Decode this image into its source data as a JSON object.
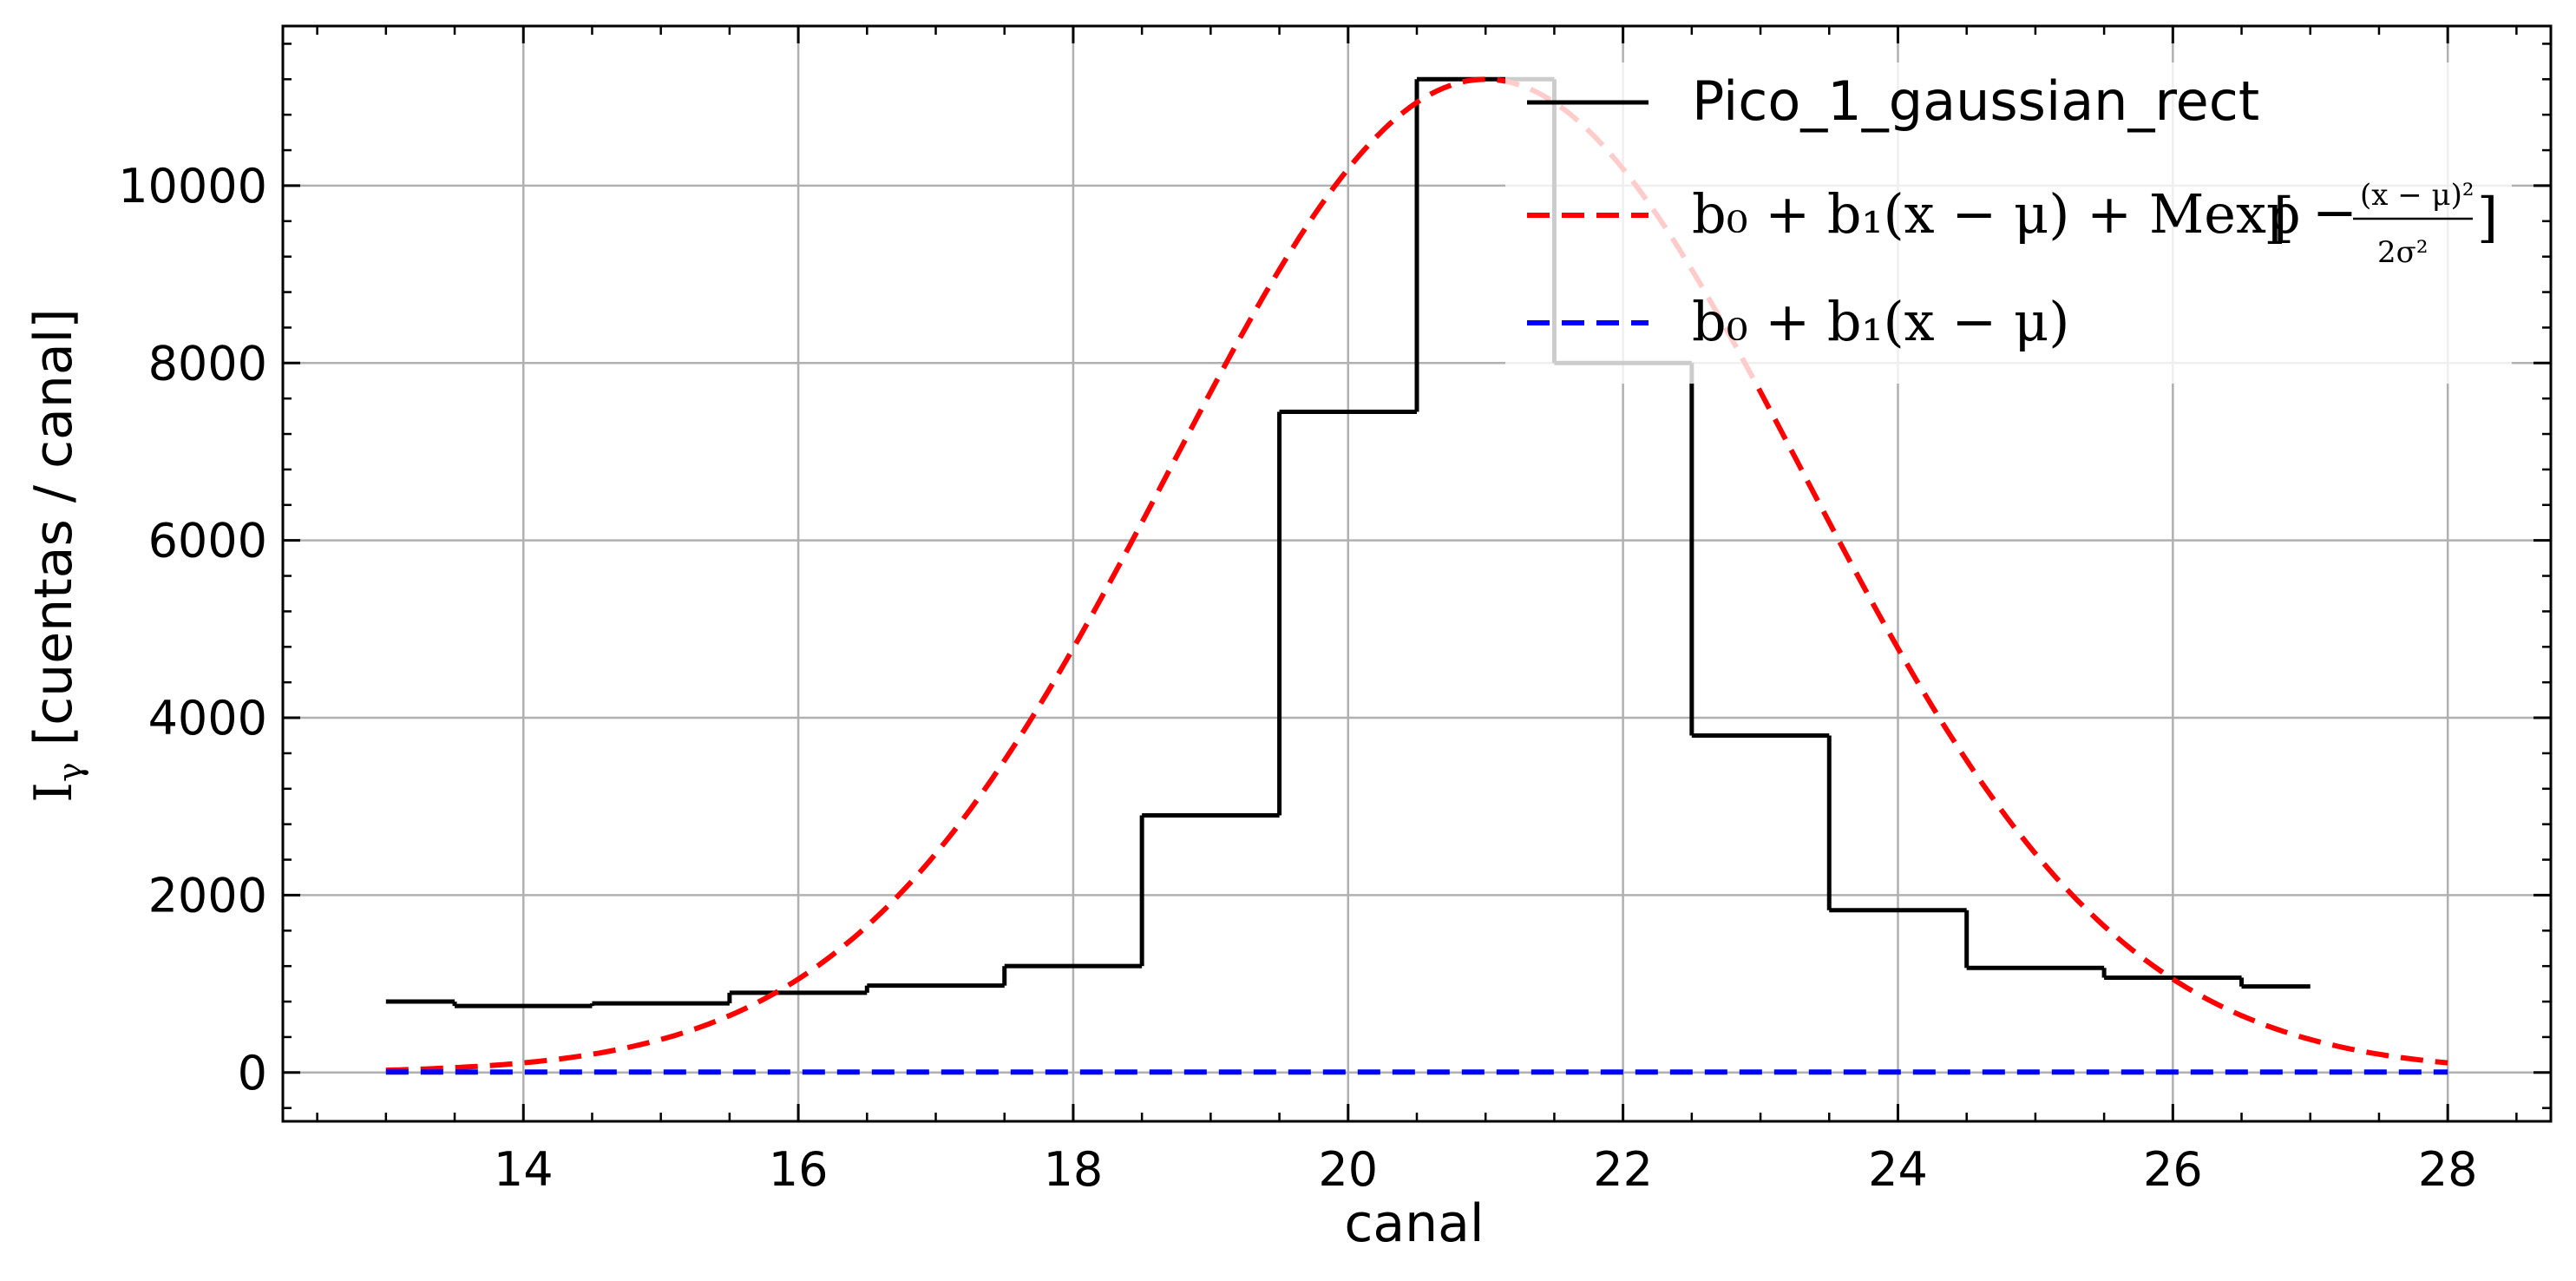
{
  "chart_data": {
    "type": "line",
    "xlabel": "canal",
    "ylabel": "I",
    "ylabel_sub": "γ",
    "ylabel_rest": " [cuentas / canal]",
    "xlim": [
      12.25,
      28.75
    ],
    "ylim": [
      -550,
      11800
    ],
    "xticks": [
      14,
      16,
      18,
      20,
      22,
      24,
      26,
      28
    ],
    "yticks": [
      0,
      2000,
      4000,
      6000,
      8000,
      10000
    ],
    "grid": true,
    "legend_position": "top-right",
    "series": [
      {
        "name": "Pico_1_gaussian_rect",
        "style": "step",
        "color": "#000000",
        "x": [
          13,
          14,
          15,
          16,
          17,
          18,
          19,
          20,
          21,
          22,
          23,
          24,
          25,
          26,
          27
        ],
        "y": [
          800,
          750,
          780,
          900,
          980,
          1200,
          2900,
          7450,
          11200,
          8000,
          3800,
          1830,
          1180,
          1070,
          970
        ]
      },
      {
        "name": "b0 + b1(x − μ) + M exp[−(x − μ)²/2σ²]",
        "style": "dashed",
        "color": "#ff0000",
        "model": {
          "b0": 0,
          "b1": 0,
          "M": 11200,
          "mu": 21.0,
          "sigma": 2.3
        },
        "x_range": [
          13,
          28
        ]
      },
      {
        "name": "b0 + b1(x − μ)",
        "style": "dashed",
        "color": "#0000ff",
        "x": [
          13,
          28
        ],
        "y": [
          5,
          5
        ]
      }
    ]
  },
  "legend": {
    "entry1": "Pico_1_gaussian_rect",
    "entry2_main": "b₀ + b₁(x − μ) + Mexp",
    "entry2_num": "(x − μ)²",
    "entry2_den": "2σ²",
    "entry2_minus": "−",
    "entry3": "b₀ + b₁(x − μ)"
  }
}
